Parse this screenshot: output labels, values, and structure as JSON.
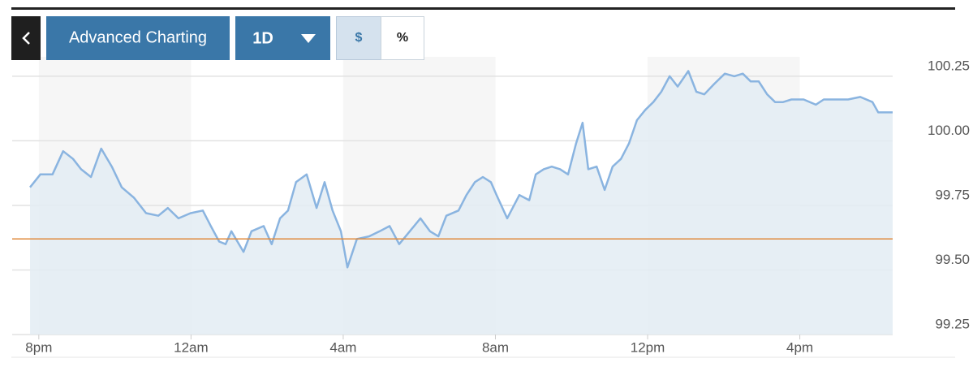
{
  "toolbar": {
    "buttons": [
      "Advanced Charting",
      "1D",
      "$",
      "%"
    ]
  },
  "chart_data": {
    "type": "area",
    "x": [
      -0.23,
      0.04,
      0.36,
      0.64,
      0.9,
      1.11,
      1.37,
      1.64,
      1.92,
      2.18,
      2.5,
      2.82,
      3.14,
      3.39,
      3.67,
      3.99,
      4.31,
      4.52,
      4.74,
      4.91,
      5.06,
      5.38,
      5.59,
      5.91,
      6.12,
      6.34,
      6.55,
      6.76,
      7.04,
      7.3,
      7.51,
      7.72,
      7.94,
      8.11,
      8.36,
      8.68,
      8.96,
      9.22,
      9.47,
      9.75,
      10.03,
      10.28,
      10.5,
      10.71,
      11.03,
      11.24,
      11.46,
      11.67,
      11.88,
      12.03,
      12.31,
      12.63,
      12.89,
      13.06,
      13.27,
      13.48,
      13.7,
      13.91,
      14.12,
      14.29,
      14.44,
      14.66,
      14.87,
      15.08,
      15.3,
      15.51,
      15.72,
      15.94,
      16.15,
      16.36,
      16.58,
      16.79,
      17.07,
      17.28,
      17.49,
      17.75,
      18.03,
      18.28,
      18.5,
      18.71,
      18.92,
      19.14,
      19.35,
      19.56,
      19.78,
      20.1,
      20.42,
      20.63,
      20.95,
      21.27,
      21.59,
      21.91,
      22.06,
      22.44
    ],
    "values": [
      99.82,
      99.87,
      99.87,
      99.96,
      99.93,
      99.89,
      99.86,
      99.97,
      99.9,
      99.82,
      99.78,
      99.72,
      99.71,
      99.74,
      99.7,
      99.72,
      99.73,
      99.67,
      99.61,
      99.6,
      99.65,
      99.57,
      99.65,
      99.67,
      99.6,
      99.7,
      99.73,
      99.84,
      99.87,
      99.74,
      99.84,
      99.73,
      99.65,
      99.51,
      99.62,
      99.63,
      99.65,
      99.67,
      99.6,
      99.65,
      99.7,
      99.65,
      99.63,
      99.71,
      99.73,
      99.79,
      99.84,
      99.86,
      99.84,
      99.79,
      99.7,
      99.79,
      99.77,
      99.87,
      99.89,
      99.9,
      99.89,
      99.87,
      99.99,
      100.07,
      99.89,
      99.9,
      99.81,
      99.9,
      99.93,
      99.99,
      100.08,
      100.12,
      100.15,
      100.19,
      100.25,
      100.21,
      100.27,
      100.19,
      100.18,
      100.22,
      100.26,
      100.25,
      100.26,
      100.23,
      100.23,
      100.18,
      100.15,
      100.15,
      100.16,
      100.16,
      100.14,
      100.16,
      100.16,
      100.16,
      100.17,
      100.15,
      100.11,
      100.11
    ],
    "color": "#8ab4e0",
    "fill": "#e3ecf3",
    "xlim": [
      -0.7,
      22.44
    ],
    "xticks": [
      {
        "value": 0,
        "label": "8pm"
      },
      {
        "value": 4,
        "label": "12am"
      },
      {
        "value": 8,
        "label": "4am"
      },
      {
        "value": 12,
        "label": "8am"
      },
      {
        "value": 16,
        "label": "12pm"
      },
      {
        "value": 20,
        "label": "4pm"
      }
    ],
    "ylim": [
      99.25,
      100.3
    ],
    "yticks": [
      99.25,
      {
        "value": 99.5,
        "label": "99.50"
      },
      99.75,
      {
        "value": 100,
        "label": "100.00"
      },
      100.25
    ],
    "grid": true,
    "reference_line": {
      "value": 99.62,
      "color": "#e08a3c"
    }
  }
}
